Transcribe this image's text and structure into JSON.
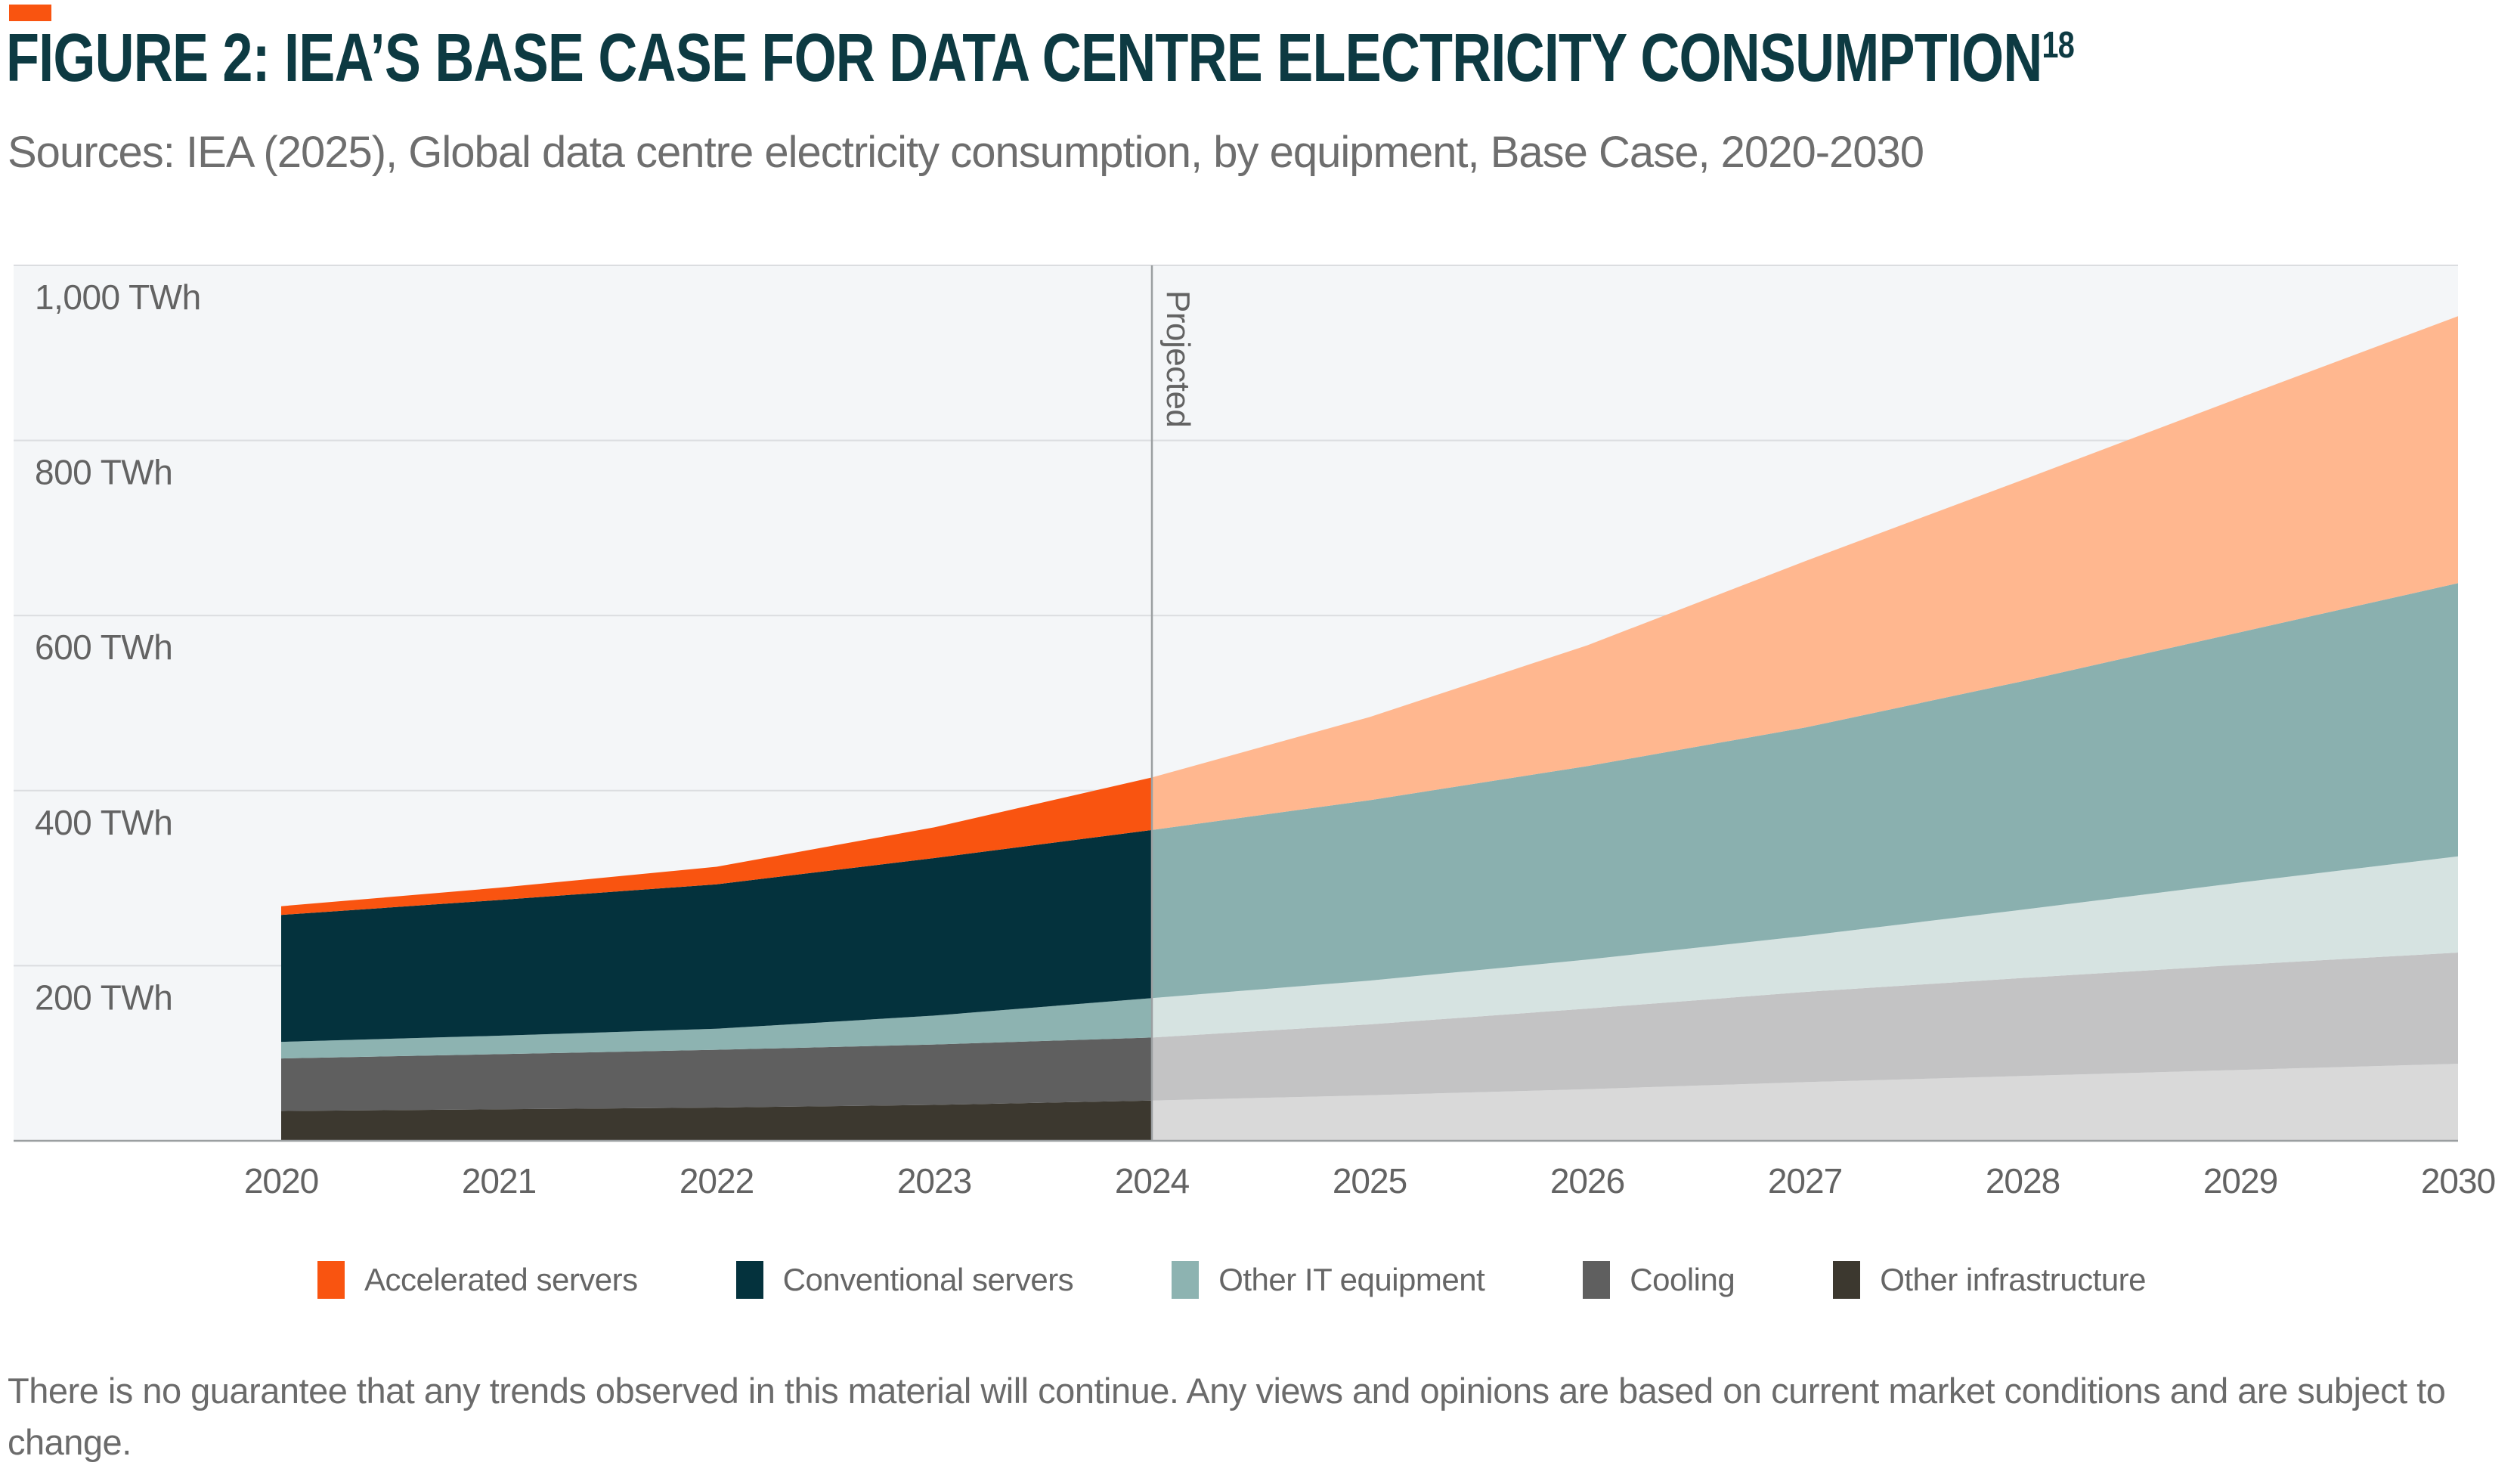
{
  "brand": {
    "accent_color": "#f95410"
  },
  "header": {
    "figure_title": "FIGURE 2: IEA’S BASE CASE FOR DATA CENTRE ELECTRICITY CONSUMPTION",
    "figure_title_superscript": "18",
    "source_line": "Sources: IEA (2025), Global data centre electricity consumption, by equipment, Base Case, 2020-2030"
  },
  "chart_data": {
    "type": "area",
    "stacked": true,
    "unit": "TWh",
    "x": [
      2020,
      2021,
      2022,
      2023,
      2024,
      2025,
      2026,
      2027,
      2028,
      2029,
      2030
    ],
    "series": [
      {
        "name": "other-infrastructure",
        "label": "Other infrastructure",
        "color": "#3c382f",
        "color_projected": "#d9d9d9",
        "values": [
          34,
          36,
          38,
          41,
          46,
          52,
          59,
          67,
          74,
          81,
          88
        ]
      },
      {
        "name": "cooling",
        "label": "Cooling",
        "color": "#5f5f5f",
        "color_projected": "#c3c3c4",
        "values": [
          60,
          63,
          66,
          69,
          72,
          81,
          92,
          103,
          112,
          120,
          127
        ]
      },
      {
        "name": "other-it-equipment",
        "label": "Other IT equipment",
        "color": "#8db3b1",
        "color_projected": "#d6e3e1",
        "values": [
          19,
          21,
          24,
          33,
          45,
          50,
          56,
          64,
          78,
          94,
          110
        ]
      },
      {
        "name": "conventional-servers",
        "label": "Conventional servers",
        "color": "#04323d",
        "color_projected": "#8ab0af",
        "values": [
          145,
          155,
          165,
          180,
          192,
          206,
          221,
          238,
          261,
          286,
          312
        ]
      },
      {
        "name": "accelerated-servers",
        "label": "Accelerated servers",
        "color": "#f95410",
        "color_projected": "#ffb78f",
        "values": [
          10,
          14,
          20,
          35,
          60,
          95,
          138,
          190,
          230,
          268,
          305
        ]
      }
    ],
    "y_ticks": [
      {
        "value": 1000,
        "label": "1,000 TWh"
      },
      {
        "value": 800,
        "label": "800 TWh"
      },
      {
        "value": 600,
        "label": "600 TWh"
      },
      {
        "value": 400,
        "label": "400 TWh"
      },
      {
        "value": 200,
        "label": "200 TWh"
      }
    ],
    "ylim": [
      0,
      1000
    ],
    "divider": {
      "x": 2024,
      "label": "Projected"
    },
    "legend_position": "bottom",
    "grid": true,
    "colors": {
      "plot_bg": "#f4f6f8",
      "gridline": "#dbdde0",
      "axis_line": "#9b9fa1",
      "divider_line": "#9b9fa1",
      "tick_text": "#636363"
    }
  },
  "footer": {
    "disclaimer": "There is no guarantee that any trends observed in this material will continue. Any views and opinions are based on current market conditions and are subject to change."
  }
}
